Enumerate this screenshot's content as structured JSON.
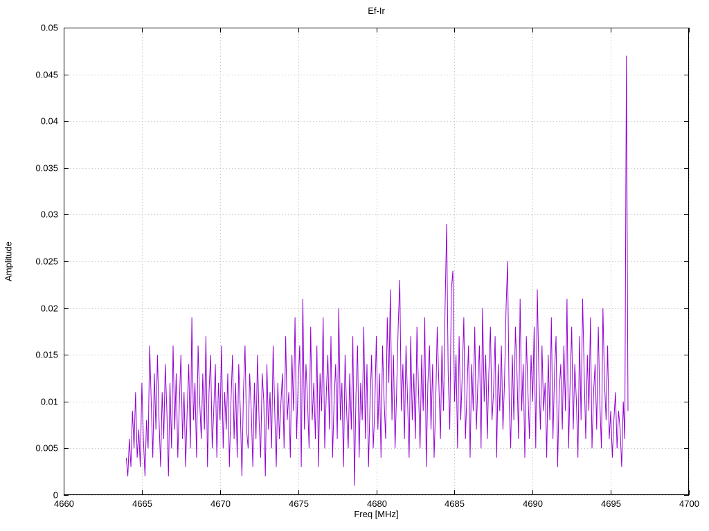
{
  "title": "Ef-Ir",
  "axes": {
    "x_label": "Freq [MHz]",
    "y_label": "Amplitude"
  },
  "chart_data": {
    "type": "line",
    "title": "Ef-Ir",
    "xlabel": "Freq [MHz]",
    "ylabel": "Amplitude",
    "xlim": [
      4660,
      4700
    ],
    "ylim": [
      0,
      0.05
    ],
    "grid": "dotted",
    "legend": "none",
    "series_color": "#9400d3",
    "grid_color": "#c8c8c8",
    "border_color": "#000000",
    "x_ticks": [
      "4660",
      "4665",
      "4670",
      "4675",
      "4680",
      "4685",
      "4690",
      "4695",
      "4700"
    ],
    "y_ticks": [
      "0",
      "0.005",
      "0.01",
      "0.015",
      "0.02",
      "0.025",
      "0.03",
      "0.035",
      "0.04",
      "0.045",
      "0.05"
    ],
    "x_start": 4664.0,
    "x_step": 0.1,
    "amplitude_unit_scale": 0.001,
    "values_milli": [
      4,
      2,
      6,
      3,
      9,
      5,
      11,
      4,
      7,
      3,
      12,
      6,
      2,
      8,
      5,
      16,
      10,
      4,
      13,
      7,
      15,
      8,
      3,
      11,
      6,
      14,
      9,
      2,
      12,
      5,
      16,
      7,
      13,
      4,
      10,
      15,
      6,
      11,
      3,
      9,
      14,
      5,
      19,
      8,
      12,
      4,
      16,
      10,
      6,
      13,
      7,
      17,
      3,
      11,
      15,
      5,
      9,
      14,
      4,
      12,
      8,
      16,
      5,
      11,
      7,
      13,
      3,
      10,
      15,
      6,
      12,
      4,
      14,
      9,
      2,
      11,
      16,
      7,
      5,
      13,
      9,
      3,
      12,
      6,
      15,
      8,
      4,
      13,
      10,
      2,
      14,
      7,
      11,
      5,
      16,
      9,
      3,
      12,
      6,
      10,
      13,
      5,
      17,
      8,
      11,
      4,
      15,
      9,
      19,
      6,
      12,
      16,
      3,
      21,
      7,
      14,
      10,
      5,
      18,
      8,
      12,
      6,
      16,
      3,
      13,
      9,
      19,
      5,
      11,
      15,
      7,
      17,
      4,
      10,
      14,
      6,
      20,
      8,
      12,
      3,
      15,
      9,
      5,
      13,
      7,
      17,
      1,
      11,
      16,
      4,
      12,
      8,
      18,
      6,
      14,
      3,
      10,
      15,
      5,
      9,
      17,
      7,
      13,
      4,
      16,
      10,
      6,
      19,
      12,
      22,
      8,
      15,
      5,
      11,
      18,
      23,
      9,
      14,
      6,
      16,
      10,
      4,
      17,
      8,
      13,
      6,
      18,
      11,
      5,
      15,
      9,
      19,
      3,
      12,
      16,
      7,
      14,
      4,
      10,
      18,
      12,
      6,
      16,
      9,
      20,
      29,
      13,
      7,
      22,
      24,
      10,
      15,
      5,
      17,
      8,
      13,
      19,
      6,
      11,
      16,
      4,
      14,
      9,
      18,
      7,
      12,
      16,
      5,
      20,
      10,
      15,
      6,
      13,
      18,
      8,
      11,
      17,
      4,
      14,
      9,
      16,
      7,
      12,
      20,
      25,
      10,
      5,
      15,
      8,
      18,
      13,
      6,
      21,
      9,
      14,
      4,
      17,
      11,
      6,
      15,
      10,
      18,
      5,
      22,
      13,
      7,
      16,
      9,
      12,
      4,
      15,
      8,
      19,
      6,
      13,
      17,
      3,
      11,
      14,
      7,
      16,
      9,
      21,
      5,
      12,
      18,
      7,
      14,
      10,
      4,
      17,
      8,
      21,
      13,
      6,
      15,
      9,
      19,
      5,
      11,
      14,
      7,
      18,
      10,
      5,
      20,
      12,
      8,
      16,
      6,
      9,
      4,
      8,
      11,
      5,
      9,
      7,
      3,
      10,
      6,
      47,
      9
    ],
    "notable_peaks": [
      {
        "x": 4684.5,
        "y": 0.029
      },
      {
        "x": 4688.4,
        "y": 0.025
      },
      {
        "x": 4684.9,
        "y": 0.024
      },
      {
        "x": 4696.0,
        "y": 0.047
      }
    ]
  }
}
